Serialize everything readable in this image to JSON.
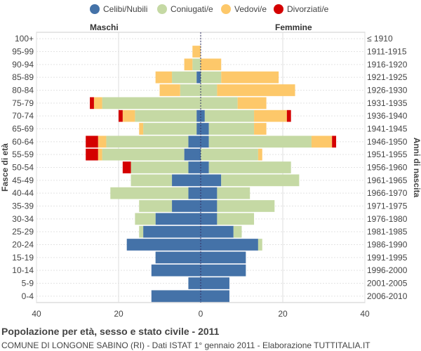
{
  "legend": [
    {
      "label": "Celibi/Nubili",
      "color": "#4472a8"
    },
    {
      "label": "Coniugati/e",
      "color": "#c5d9a4"
    },
    {
      "label": "Vedovi/e",
      "color": "#fdc86a"
    },
    {
      "label": "Divorziati/e",
      "color": "#d40000"
    }
  ],
  "header": {
    "left": "Maschi",
    "right": "Femmine"
  },
  "footer": {
    "title": "Popolazione per età, sesso e stato civile - 2011",
    "subtitle": "COMUNE DI LONGONE SABINO (RI) - Dati ISTAT 1° gennaio 2011 - Elaborazione TUTTITALIA.IT"
  },
  "chart_data": {
    "type": "bar",
    "orientation": "horizontal-population-pyramid",
    "title": "Popolazione per età, sesso e stato civile - 2011",
    "ylabel_left": "Fasce di età",
    "ylabel_right": "Anni di nascita",
    "xlim": [
      -40,
      40
    ],
    "xticks": [
      -40,
      -20,
      0,
      20,
      40
    ],
    "xtick_labels": [
      "40",
      "20",
      "0",
      "20",
      "40"
    ],
    "categories": [
      "100+",
      "95-99",
      "90-94",
      "85-89",
      "80-84",
      "75-79",
      "70-74",
      "65-69",
      "60-64",
      "55-59",
      "50-54",
      "45-49",
      "40-44",
      "35-39",
      "30-34",
      "25-29",
      "20-24",
      "15-19",
      "10-14",
      "5-9",
      "0-4"
    ],
    "birth_years": [
      "≤ 1910",
      "1911-1915",
      "1916-1920",
      "1921-1925",
      "1926-1930",
      "1931-1935",
      "1936-1940",
      "1941-1945",
      "1946-1950",
      "1951-1955",
      "1956-1960",
      "1961-1965",
      "1966-1970",
      "1971-1975",
      "1976-1980",
      "1981-1985",
      "1986-1990",
      "1991-1995",
      "1996-2000",
      "2001-2005",
      "2006-2010"
    ],
    "series_order": [
      "Celibi/Nubili",
      "Coniugati/e",
      "Vedovi/e",
      "Divorziati/e"
    ],
    "males": {
      "Celibi/Nubili": [
        0,
        0,
        0,
        1,
        0,
        0,
        1,
        1,
        3,
        4,
        3,
        7,
        3,
        7,
        11,
        14,
        18,
        11,
        12,
        3,
        12
      ],
      "Coniugati/e": [
        0,
        0,
        2,
        6,
        5,
        24,
        15,
        13,
        20,
        20,
        14,
        10,
        19,
        8,
        5,
        1,
        0,
        0,
        0,
        0,
        0
      ],
      "Vedovi/e": [
        0,
        2,
        2,
        4,
        5,
        2,
        3,
        1,
        2,
        1,
        0,
        0,
        0,
        0,
        0,
        0,
        0,
        0,
        0,
        0,
        0
      ],
      "Divorziati/e": [
        0,
        0,
        0,
        0,
        0,
        1,
        1,
        0,
        3,
        3,
        2,
        0,
        0,
        0,
        0,
        0,
        0,
        0,
        0,
        0,
        0
      ]
    },
    "females": {
      "Celibi/Nubili": [
        0,
        0,
        0,
        0,
        0,
        0,
        1,
        2,
        2,
        0,
        2,
        5,
        4,
        4,
        4,
        8,
        14,
        11,
        11,
        7,
        7
      ],
      "Coniugati/e": [
        0,
        0,
        0,
        5,
        4,
        9,
        12,
        11,
        25,
        14,
        20,
        19,
        8,
        14,
        9,
        2,
        1,
        0,
        0,
        0,
        0
      ],
      "Vedovi/e": [
        0,
        0,
        5,
        14,
        19,
        7,
        8,
        3,
        5,
        1,
        0,
        0,
        0,
        0,
        0,
        0,
        0,
        0,
        0,
        0,
        0
      ],
      "Divorziati/e": [
        0,
        0,
        0,
        0,
        0,
        0,
        1,
        0,
        1,
        0,
        0,
        0,
        0,
        0,
        0,
        0,
        0,
        0,
        0,
        0,
        0
      ]
    }
  }
}
